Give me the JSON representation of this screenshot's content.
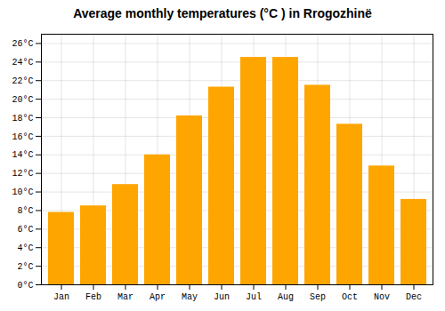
{
  "chart_data": {
    "type": "bar",
    "title": "Average monthly temperatures (°C ) in Rrogozhinë",
    "categories": [
      "Jan",
      "Feb",
      "Mar",
      "Apr",
      "May",
      "Jun",
      "Jul",
      "Aug",
      "Sep",
      "Oct",
      "Nov",
      "Dec"
    ],
    "values": [
      7.8,
      8.5,
      10.8,
      14.0,
      18.2,
      21.3,
      24.5,
      24.5,
      21.5,
      17.3,
      12.8,
      9.2
    ],
    "color": "#FFA500",
    "ylim": [
      0,
      27
    ],
    "yticks": [
      {
        "value": 0,
        "label": "0°C"
      },
      {
        "value": 2,
        "label": "2°C"
      },
      {
        "value": 4,
        "label": "4°C"
      },
      {
        "value": 6,
        "label": "6°C"
      },
      {
        "value": 8,
        "label": "8°C"
      },
      {
        "value": 10,
        "label": "10°C"
      },
      {
        "value": 12,
        "label": "12°C"
      },
      {
        "value": 14,
        "label": "14°C"
      },
      {
        "value": 16,
        "label": "16°C"
      },
      {
        "value": 18,
        "label": "18°C"
      },
      {
        "value": 20,
        "label": "20°C"
      },
      {
        "value": 22,
        "label": "22°C"
      },
      {
        "value": 24,
        "label": "24°C"
      },
      {
        "value": 26,
        "label": "26°C"
      }
    ],
    "grid": true
  }
}
